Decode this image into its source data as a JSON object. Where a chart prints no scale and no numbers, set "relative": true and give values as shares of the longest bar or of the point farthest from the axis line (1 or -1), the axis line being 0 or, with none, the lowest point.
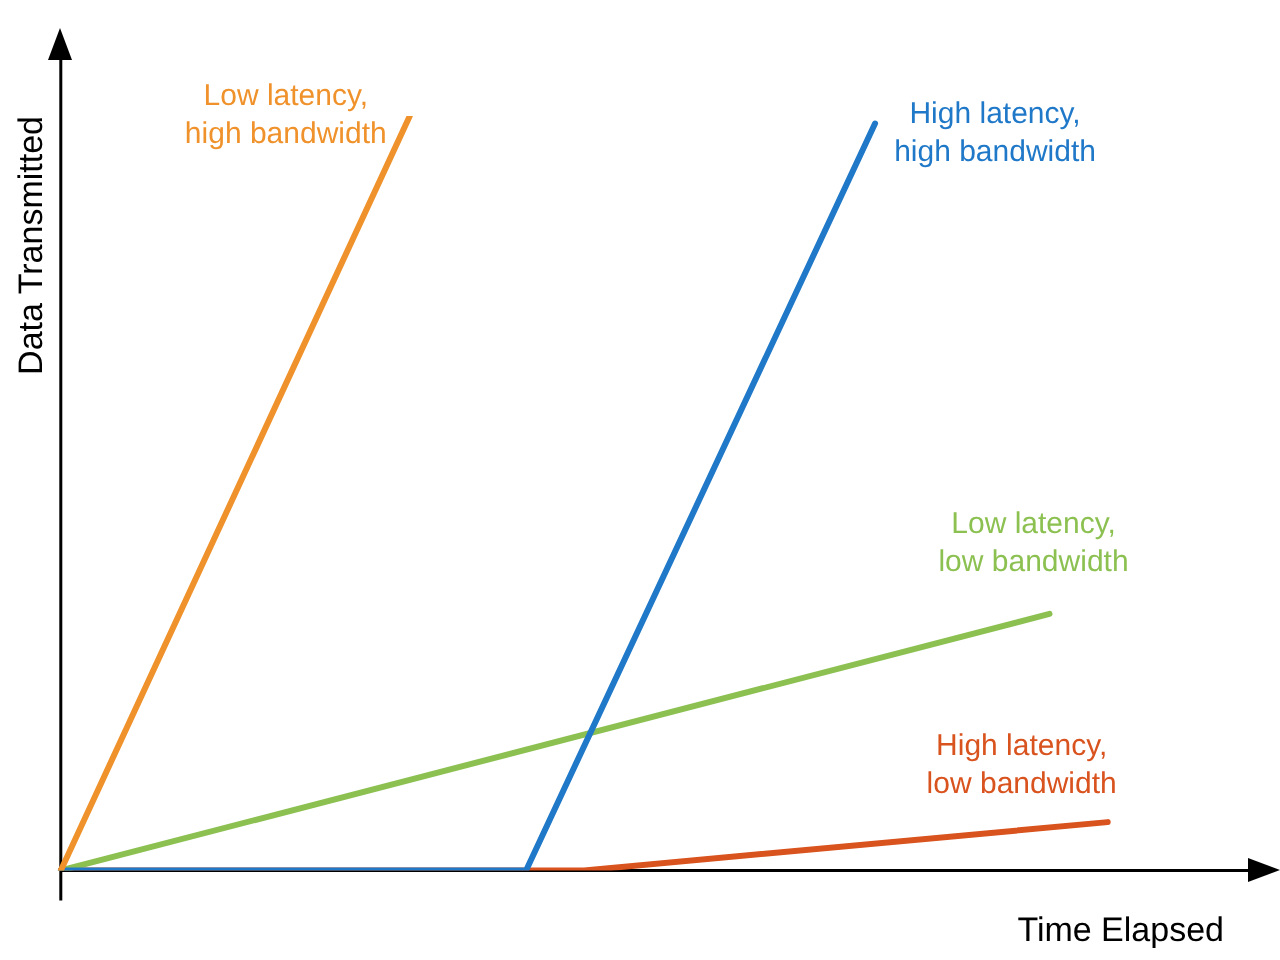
{
  "chart_data": {
    "type": "line",
    "relative": true,
    "xlabel": "Time Elapsed",
    "ylabel": "Data Transmitted",
    "grid": false,
    "legend": false,
    "marker": "none",
    "line_style": "solid",
    "categories": [
      null,
      null,
      null,
      null,
      null,
      null,
      null,
      null,
      null,
      null,
      null,
      null,
      null,
      null,
      null,
      null,
      null,
      null,
      null,
      null,
      null
    ],
    "series": [
      {
        "name": "Low latency, high bandwidth",
        "color": "#f0922b",
        "values": [
          0,
          null,
          null,
          null,
          null,
          null,
          1,
          null,
          null,
          null,
          null,
          null,
          null,
          null,
          null,
          null,
          null,
          null,
          null,
          null,
          null
        ]
      },
      {
        "name": "High latency, high bandwidth",
        "color": "#1f78c8",
        "values": [
          0,
          null,
          null,
          null,
          null,
          null,
          null,
          null,
          0,
          null,
          null,
          null,
          null,
          null,
          0.99,
          null,
          null,
          null,
          null,
          null,
          null
        ]
      },
      {
        "name": "Low latency, low bandwidth",
        "color": "#8cc152",
        "values": [
          0,
          null,
          null,
          null,
          null,
          null,
          null,
          null,
          null,
          null,
          null,
          null,
          null,
          null,
          null,
          null,
          null,
          0.34,
          null,
          null,
          null
        ]
      },
      {
        "name": "High latency, low bandwidth",
        "color": "#d9531e",
        "values": [
          0,
          null,
          null,
          null,
          null,
          null,
          null,
          null,
          null,
          0,
          null,
          null,
          null,
          null,
          null,
          null,
          null,
          null,
          0.064,
          null,
          null
        ]
      }
    ]
  }
}
